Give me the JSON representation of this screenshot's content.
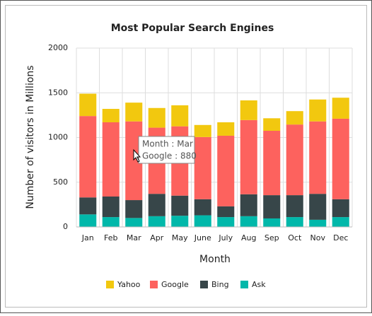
{
  "chart_data": {
    "type": "stacked_bar",
    "title": "Most Popular Search Engines",
    "x_label": "Month",
    "y_label": "Number of visitors in Millions",
    "categories": [
      "Jan",
      "Feb",
      "Mar",
      "Apr",
      "May",
      "June",
      "July",
      "Aug",
      "Sep",
      "Oct",
      "Nov",
      "Dec"
    ],
    "series": [
      {
        "name": "Yahoo",
        "color": "#f2c80f",
        "values": [
          250,
          150,
          210,
          220,
          235,
          135,
          150,
          220,
          140,
          150,
          245,
          235
        ]
      },
      {
        "name": "Google",
        "color": "#fd625e",
        "values": [
          910,
          830,
          880,
          740,
          775,
          695,
          790,
          830,
          720,
          790,
          810,
          900
        ]
      },
      {
        "name": "Bing",
        "color": "#374649",
        "values": [
          190,
          230,
          200,
          250,
          225,
          180,
          120,
          245,
          260,
          245,
          290,
          200
        ]
      },
      {
        "name": "Ask",
        "color": "#01b8aa",
        "values": [
          140,
          110,
          100,
          120,
          125,
          130,
          110,
          120,
          95,
          110,
          80,
          110
        ]
      }
    ],
    "ylim": [
      0,
      2000
    ],
    "yticks": [
      0,
      500,
      1000,
      1500,
      2000
    ],
    "grid": true,
    "legend": "bottom",
    "tooltip": [
      "Month : Mar",
      "Google : 880"
    ]
  }
}
